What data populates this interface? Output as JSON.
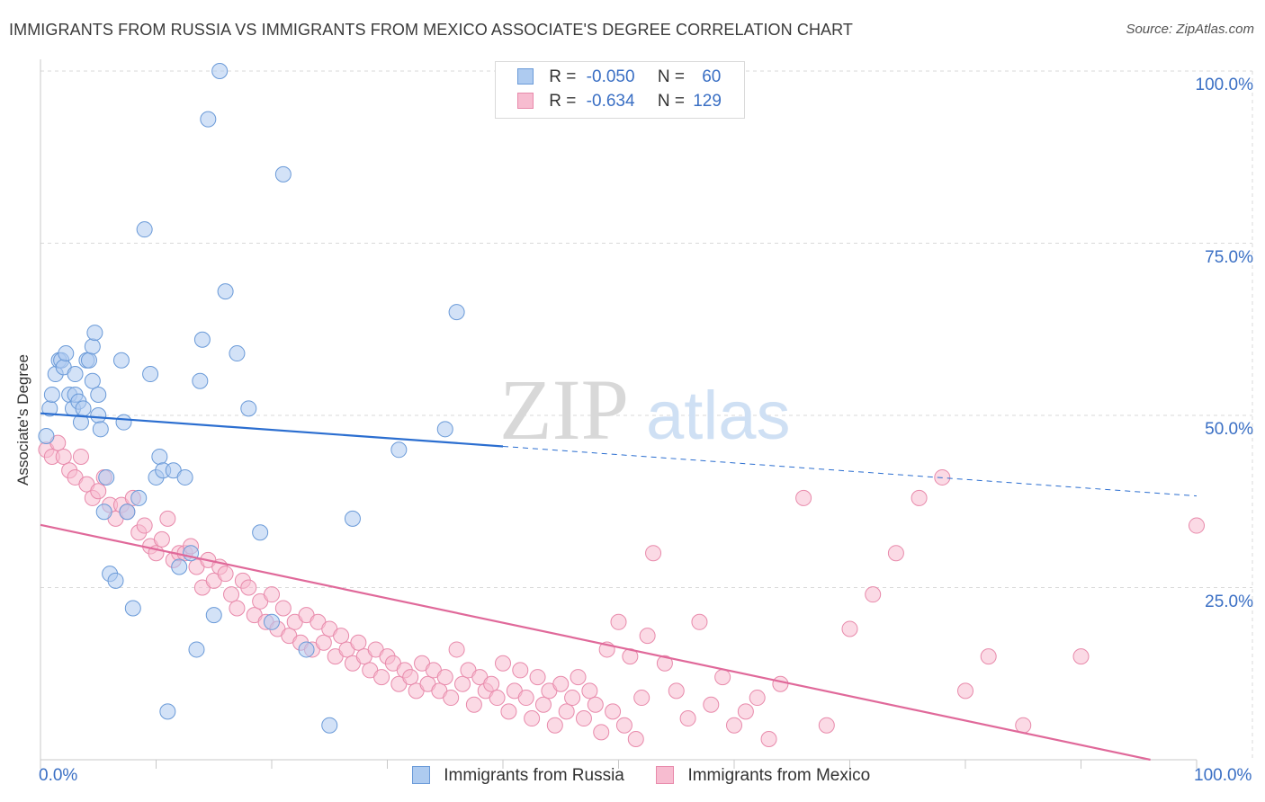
{
  "title": "IMMIGRANTS FROM RUSSIA VS IMMIGRANTS FROM MEXICO ASSOCIATE'S DEGREE CORRELATION CHART",
  "source": "Source: ZipAtlas.com",
  "watermark": {
    "zip": "ZIP",
    "atlas": "atlas"
  },
  "legend": {
    "russia": {
      "r_label": "R =",
      "r_value": "-0.050",
      "n_label": "N =",
      "n_value": "60"
    },
    "mexico": {
      "r_label": "R =",
      "r_value": "-0.634",
      "n_label": "N =",
      "n_value": "129"
    }
  },
  "colors": {
    "russia_fill": "#aecbf0",
    "russia_stroke": "#6a9ad8",
    "russia_line": "#2b6ed0",
    "mexico_fill": "#f7bcd0",
    "mexico_stroke": "#e88aab",
    "mexico_line": "#e0699a",
    "tick_text": "#3a6fc4",
    "grid": "#d9d9d9"
  },
  "chart_data": {
    "type": "scatter",
    "title": "IMMIGRANTS FROM RUSSIA VS IMMIGRANTS FROM MEXICO ASSOCIATE'S DEGREE CORRELATION CHART",
    "xlabel": "",
    "ylabel": "Associate's Degree",
    "xlim": [
      0,
      100
    ],
    "ylim": [
      0,
      100
    ],
    "x_tick_labels": [
      "0.0%",
      "100.0%"
    ],
    "y_tick_labels": [
      "100.0%",
      "75.0%",
      "50.0%",
      "25.0%"
    ],
    "y_tick_values": [
      100,
      75,
      50,
      25
    ],
    "series": [
      {
        "name": "Immigrants from Russia",
        "trend": {
          "x0": 0,
          "y0": 50.3,
          "x1": 40,
          "y1": 45.5,
          "dashed_to_x": 100,
          "dashed_to_y": 38.3
        },
        "points": [
          [
            0.5,
            47
          ],
          [
            0.8,
            51
          ],
          [
            1,
            53
          ],
          [
            1.3,
            56
          ],
          [
            1.6,
            58
          ],
          [
            1.8,
            58
          ],
          [
            2,
            57
          ],
          [
            2.2,
            59
          ],
          [
            2.5,
            53
          ],
          [
            2.8,
            51
          ],
          [
            3,
            53
          ],
          [
            3,
            56
          ],
          [
            3.3,
            52
          ],
          [
            3.5,
            49
          ],
          [
            3.7,
            51
          ],
          [
            4,
            58
          ],
          [
            4.2,
            58
          ],
          [
            4.5,
            60
          ],
          [
            4.5,
            55
          ],
          [
            4.7,
            62
          ],
          [
            5,
            53
          ],
          [
            5,
            50
          ],
          [
            5.2,
            48
          ],
          [
            5.5,
            36
          ],
          [
            5.7,
            41
          ],
          [
            6,
            27
          ],
          [
            6.5,
            26
          ],
          [
            7,
            58
          ],
          [
            7.2,
            49
          ],
          [
            7.5,
            36
          ],
          [
            8,
            22
          ],
          [
            8.5,
            38
          ],
          [
            9,
            77
          ],
          [
            9.5,
            56
          ],
          [
            10,
            41
          ],
          [
            10.3,
            44
          ],
          [
            10.6,
            42
          ],
          [
            11,
            7
          ],
          [
            11.5,
            42
          ],
          [
            12,
            28
          ],
          [
            12.5,
            41
          ],
          [
            13,
            30
          ],
          [
            13.5,
            16
          ],
          [
            13.8,
            55
          ],
          [
            14,
            61
          ],
          [
            14.5,
            93
          ],
          [
            15,
            21
          ],
          [
            15.5,
            100
          ],
          [
            16,
            68
          ],
          [
            17,
            59
          ],
          [
            18,
            51
          ],
          [
            19,
            33
          ],
          [
            20,
            20
          ],
          [
            21,
            85
          ],
          [
            23,
            16
          ],
          [
            25,
            5
          ],
          [
            27,
            35
          ],
          [
            31,
            45
          ],
          [
            35,
            48
          ],
          [
            36,
            65
          ]
        ]
      },
      {
        "name": "Immigrants from Mexico",
        "trend": {
          "x0": 0,
          "y0": 34.1,
          "x1": 96,
          "y1": 0
        },
        "points": [
          [
            0.5,
            45
          ],
          [
            1,
            44
          ],
          [
            1.5,
            46
          ],
          [
            2,
            44
          ],
          [
            2.5,
            42
          ],
          [
            3,
            41
          ],
          [
            3.5,
            44
          ],
          [
            4,
            40
          ],
          [
            4.5,
            38
          ],
          [
            5,
            39
          ],
          [
            5.5,
            41
          ],
          [
            6,
            37
          ],
          [
            6.5,
            35
          ],
          [
            7,
            37
          ],
          [
            7.5,
            36
          ],
          [
            8,
            38
          ],
          [
            8.5,
            33
          ],
          [
            9,
            34
          ],
          [
            9.5,
            31
          ],
          [
            10,
            30
          ],
          [
            10.5,
            32
          ],
          [
            11,
            35
          ],
          [
            11.5,
            29
          ],
          [
            12,
            30
          ],
          [
            12.5,
            30
          ],
          [
            13,
            31
          ],
          [
            13.5,
            28
          ],
          [
            14,
            25
          ],
          [
            14.5,
            29
          ],
          [
            15,
            26
          ],
          [
            15.5,
            28
          ],
          [
            16,
            27
          ],
          [
            16.5,
            24
          ],
          [
            17,
            22
          ],
          [
            17.5,
            26
          ],
          [
            18,
            25
          ],
          [
            18.5,
            21
          ],
          [
            19,
            23
          ],
          [
            19.5,
            20
          ],
          [
            20,
            24
          ],
          [
            20.5,
            19
          ],
          [
            21,
            22
          ],
          [
            21.5,
            18
          ],
          [
            22,
            20
          ],
          [
            22.5,
            17
          ],
          [
            23,
            21
          ],
          [
            23.5,
            16
          ],
          [
            24,
            20
          ],
          [
            24.5,
            17
          ],
          [
            25,
            19
          ],
          [
            25.5,
            15
          ],
          [
            26,
            18
          ],
          [
            26.5,
            16
          ],
          [
            27,
            14
          ],
          [
            27.5,
            17
          ],
          [
            28,
            15
          ],
          [
            28.5,
            13
          ],
          [
            29,
            16
          ],
          [
            29.5,
            12
          ],
          [
            30,
            15
          ],
          [
            30.5,
            14
          ],
          [
            31,
            11
          ],
          [
            31.5,
            13
          ],
          [
            32,
            12
          ],
          [
            32.5,
            10
          ],
          [
            33,
            14
          ],
          [
            33.5,
            11
          ],
          [
            34,
            13
          ],
          [
            34.5,
            10
          ],
          [
            35,
            12
          ],
          [
            35.5,
            9
          ],
          [
            36,
            16
          ],
          [
            36.5,
            11
          ],
          [
            37,
            13
          ],
          [
            37.5,
            8
          ],
          [
            38,
            12
          ],
          [
            38.5,
            10
          ],
          [
            39,
            11
          ],
          [
            39.5,
            9
          ],
          [
            40,
            14
          ],
          [
            40.5,
            7
          ],
          [
            41,
            10
          ],
          [
            41.5,
            13
          ],
          [
            42,
            9
          ],
          [
            42.5,
            6
          ],
          [
            43,
            12
          ],
          [
            43.5,
            8
          ],
          [
            44,
            10
          ],
          [
            44.5,
            5
          ],
          [
            45,
            11
          ],
          [
            45.5,
            7
          ],
          [
            46,
            9
          ],
          [
            46.5,
            12
          ],
          [
            47,
            6
          ],
          [
            47.5,
            10
          ],
          [
            48,
            8
          ],
          [
            48.5,
            4
          ],
          [
            49,
            16
          ],
          [
            49.5,
            7
          ],
          [
            50,
            20
          ],
          [
            50.5,
            5
          ],
          [
            51,
            15
          ],
          [
            51.5,
            3
          ],
          [
            52,
            9
          ],
          [
            52.5,
            18
          ],
          [
            53,
            30
          ],
          [
            54,
            14
          ],
          [
            55,
            10
          ],
          [
            56,
            6
          ],
          [
            57,
            20
          ],
          [
            58,
            8
          ],
          [
            59,
            12
          ],
          [
            60,
            5
          ],
          [
            61,
            7
          ],
          [
            62,
            9
          ],
          [
            63,
            3
          ],
          [
            64,
            11
          ],
          [
            66,
            38
          ],
          [
            68,
            5
          ],
          [
            70,
            19
          ],
          [
            72,
            24
          ],
          [
            74,
            30
          ],
          [
            76,
            38
          ],
          [
            78,
            41
          ],
          [
            80,
            10
          ],
          [
            82,
            15
          ],
          [
            85,
            5
          ],
          [
            90,
            15
          ],
          [
            100,
            34
          ]
        ]
      }
    ]
  },
  "bottom_legend": {
    "russia": "Immigrants from Russia",
    "mexico": "Immigrants from Mexico"
  }
}
